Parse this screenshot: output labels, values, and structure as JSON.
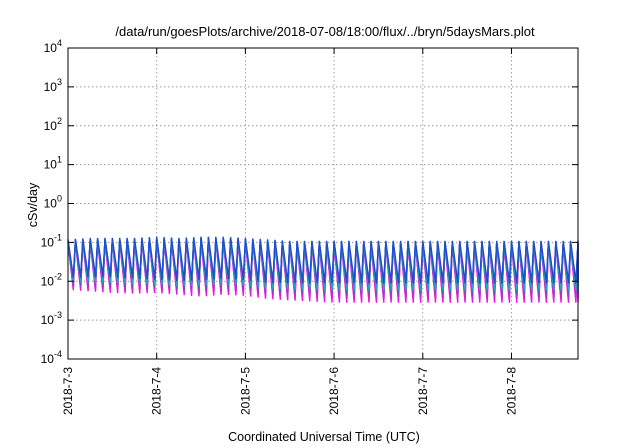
{
  "chart_data": {
    "type": "line",
    "title": "/data/run/goesPlots/archive/2018-07-08/18:00/flux/../bryn/5daysMars.plot",
    "xlabel": "Coordinated Universal Time (UTC)",
    "ylabel": "cSv/day",
    "yscale": "log",
    "ylim": [
      0.0001,
      10000
    ],
    "xlim": [
      "2018-07-03 00:00",
      "2018-07-08 18:00"
    ],
    "grid": true,
    "legend": "none",
    "y_ticks": [
      {
        "base": "10",
        "exp": "4",
        "value": 10000
      },
      {
        "base": "10",
        "exp": "3",
        "value": 1000
      },
      {
        "base": "10",
        "exp": "2",
        "value": 100
      },
      {
        "base": "10",
        "exp": "1",
        "value": 10
      },
      {
        "base": "10",
        "exp": "0",
        "value": 1
      },
      {
        "base": "10",
        "exp": "-1",
        "value": 0.1
      },
      {
        "base": "10",
        "exp": "-2",
        "value": 0.01
      },
      {
        "base": "10",
        "exp": "-3",
        "value": 0.001
      },
      {
        "base": "10",
        "exp": "-4",
        "value": 0.0001
      }
    ],
    "x_ticks": [
      "2018-7-3",
      "2018-7-4",
      "2018-7-5",
      "2018-7-6",
      "2018-7-7",
      "2018-7-8"
    ],
    "cycle_hours": 2,
    "series_shape": {
      "x": [
        "2018-07-03 00:00",
        "2018-07-03 06:00",
        "2018-07-03 12:00",
        "2018-07-03 18:00",
        "2018-07-04 00:00",
        "2018-07-04 06:00",
        "2018-07-04 12:00",
        "2018-07-04 18:00",
        "2018-07-05 00:00",
        "2018-07-05 06:00",
        "2018-07-05 12:00",
        "2018-07-05 18:00",
        "2018-07-06 00:00",
        "2018-07-06 06:00",
        "2018-07-06 12:00",
        "2018-07-06 18:00",
        "2018-07-07 00:00",
        "2018-07-07 06:00",
        "2018-07-07 12:00",
        "2018-07-07 18:00",
        "2018-07-08 00:00",
        "2018-07-08 06:00",
        "2018-07-08 12:00",
        "2018-07-08 18:00"
      ],
      "cycle_peak": [
        0.12,
        0.13,
        0.13,
        0.13,
        0.14,
        0.13,
        0.14,
        0.14,
        0.13,
        0.12,
        0.11,
        0.11,
        0.11,
        0.11,
        0.11,
        0.11,
        0.11,
        0.11,
        0.11,
        0.11,
        0.11,
        0.11,
        0.11,
        0.11
      ],
      "cycle_trough_top": [
        0.013,
        0.014,
        0.014,
        0.013,
        0.012,
        0.011,
        0.012,
        0.013,
        0.012,
        0.01,
        0.01,
        0.01,
        0.01,
        0.01,
        0.01,
        0.01,
        0.01,
        0.01,
        0.01,
        0.01,
        0.01,
        0.01,
        0.01,
        0.01
      ],
      "cycle_trough_bottom": [
        0.006,
        0.0055,
        0.005,
        0.0048,
        0.005,
        0.0045,
        0.004,
        0.0045,
        0.0042,
        0.0035,
        0.0032,
        0.003,
        0.0028,
        0.0028,
        0.0028,
        0.0028,
        0.0028,
        0.0028,
        0.0028,
        0.0028,
        0.0028,
        0.0028,
        0.0028,
        0.0028
      ]
    },
    "series": [
      {
        "color": "#1f4fd1",
        "level": 1.0
      },
      {
        "color": "#2b3fb0",
        "level": 0.9
      },
      {
        "color": "#20a8b4",
        "level": 0.72
      },
      {
        "color": "#00c0a0",
        "level": 0.58
      },
      {
        "color": "#7a4dc8",
        "level": 0.4
      },
      {
        "color": "#c02ad0",
        "level": 0.22
      },
      {
        "color": "#e020d8",
        "level": 0.08
      },
      {
        "color": "#ff00ff",
        "level": 0.0
      }
    ]
  }
}
